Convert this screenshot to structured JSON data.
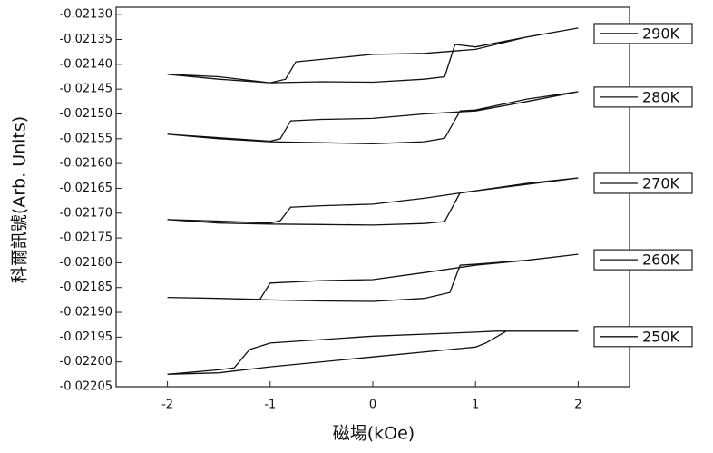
{
  "chart_data": {
    "type": "line",
    "xlabel": "磁場(kOe)",
    "ylabel": "科爾訊號(Arb. Units)",
    "xlim": [
      -2.5,
      2.5
    ],
    "ylim": [
      -0.02205,
      -0.021285
    ],
    "xticks": [
      -2,
      -1,
      0,
      1,
      2
    ],
    "yticks": [
      {
        "value": -0.0213,
        "label": "-0.02130"
      },
      {
        "value": -0.02135,
        "label": "-0.02135"
      },
      {
        "value": -0.0214,
        "label": "-0.02140"
      },
      {
        "value": -0.02145,
        "label": "-0.02145"
      },
      {
        "value": -0.0215,
        "label": "-0.02150"
      },
      {
        "value": -0.02155,
        "label": "-0.02155"
      },
      {
        "value": -0.0216,
        "label": "-0.02160"
      },
      {
        "value": -0.02165,
        "label": "-0.02165"
      },
      {
        "value": -0.0217,
        "label": "-0.02170"
      },
      {
        "value": -0.02175,
        "label": "-0.02175"
      },
      {
        "value": -0.0218,
        "label": "-0.02180"
      },
      {
        "value": -0.02185,
        "label": "-0.02185"
      },
      {
        "value": -0.0219,
        "label": "-0.02190"
      },
      {
        "value": -0.02195,
        "label": "-0.02195"
      },
      {
        "value": -0.022,
        "label": "-0.02200"
      },
      {
        "value": -0.02205,
        "label": "-0.02205"
      }
    ],
    "legend": "right",
    "series": [
      {
        "name": "290K",
        "color": "#111111",
        "x": [
          2,
          1.5,
          1,
          0.5,
          0,
          -0.5,
          -0.75,
          -0.85,
          -1,
          -1.5,
          -2,
          -1.5,
          -1,
          -0.5,
          0,
          0.5,
          0.7,
          0.8,
          1,
          1.5,
          2
        ],
        "values": [
          -0.021327,
          -0.021345,
          -0.02137,
          -0.021378,
          -0.02138,
          -0.02139,
          -0.021395,
          -0.02143,
          -0.021437,
          -0.02143,
          -0.02142,
          -0.021425,
          -0.021437,
          -0.021435,
          -0.021436,
          -0.02143,
          -0.021425,
          -0.02136,
          -0.021365,
          -0.021345,
          -0.021327
        ]
      },
      {
        "name": "280K",
        "color": "#111111",
        "x": [
          2,
          1.5,
          1,
          0.5,
          0,
          -0.5,
          -0.8,
          -0.9,
          -1,
          -1.5,
          -2,
          -1.5,
          -1,
          -0.5,
          0,
          0.5,
          0.7,
          0.85,
          1,
          1.5,
          2
        ],
        "values": [
          -0.021455,
          -0.021475,
          -0.021494,
          -0.0215,
          -0.021509,
          -0.021511,
          -0.021514,
          -0.02155,
          -0.021555,
          -0.021548,
          -0.021541,
          -0.02155,
          -0.021556,
          -0.021558,
          -0.02156,
          -0.021556,
          -0.021549,
          -0.021494,
          -0.021492,
          -0.02147,
          -0.021455
        ]
      },
      {
        "name": "270K",
        "color": "#111111",
        "x": [
          2,
          1.5,
          1,
          0.5,
          0,
          -0.5,
          -0.8,
          -0.9,
          -1,
          -1.5,
          -2,
          -1.5,
          -1,
          -0.5,
          0,
          0.5,
          0.7,
          0.85,
          1,
          1.5,
          2
        ],
        "values": [
          -0.021629,
          -0.021642,
          -0.021655,
          -0.02167,
          -0.021682,
          -0.021685,
          -0.021688,
          -0.021715,
          -0.02172,
          -0.021716,
          -0.021713,
          -0.02172,
          -0.021722,
          -0.021723,
          -0.021724,
          -0.021721,
          -0.021717,
          -0.021659,
          -0.021655,
          -0.02164,
          -0.021629
        ]
      },
      {
        "name": "260K",
        "color": "#111111",
        "x": [
          2,
          1.5,
          1,
          0.5,
          0,
          -0.5,
          -1,
          -1.1,
          -1.5,
          -2,
          -1.5,
          -1,
          -0.5,
          0,
          0.5,
          0.75,
          0.85,
          1,
          1.5,
          2
        ],
        "values": [
          -0.021783,
          -0.021795,
          -0.021805,
          -0.02182,
          -0.021834,
          -0.021836,
          -0.021841,
          -0.021874,
          -0.021872,
          -0.02187,
          -0.021872,
          -0.021875,
          -0.021877,
          -0.021878,
          -0.021872,
          -0.02186,
          -0.021805,
          -0.021803,
          -0.021795,
          -0.021783
        ]
      },
      {
        "name": "250K",
        "color": "#111111",
        "x": [
          2,
          1.5,
          1.2,
          1,
          0,
          -1,
          -1.2,
          -1.35,
          -1.5,
          -2,
          -1.5,
          -1,
          0,
          1,
          1.1,
          1.3,
          2
        ],
        "values": [
          -0.021938,
          -0.021938,
          -0.021938,
          -0.02194,
          -0.021948,
          -0.021962,
          -0.021975,
          -0.022012,
          -0.022016,
          -0.022025,
          -0.022022,
          -0.02201,
          -0.02199,
          -0.02197,
          -0.021962,
          -0.021938,
          -0.021938
        ]
      }
    ]
  }
}
